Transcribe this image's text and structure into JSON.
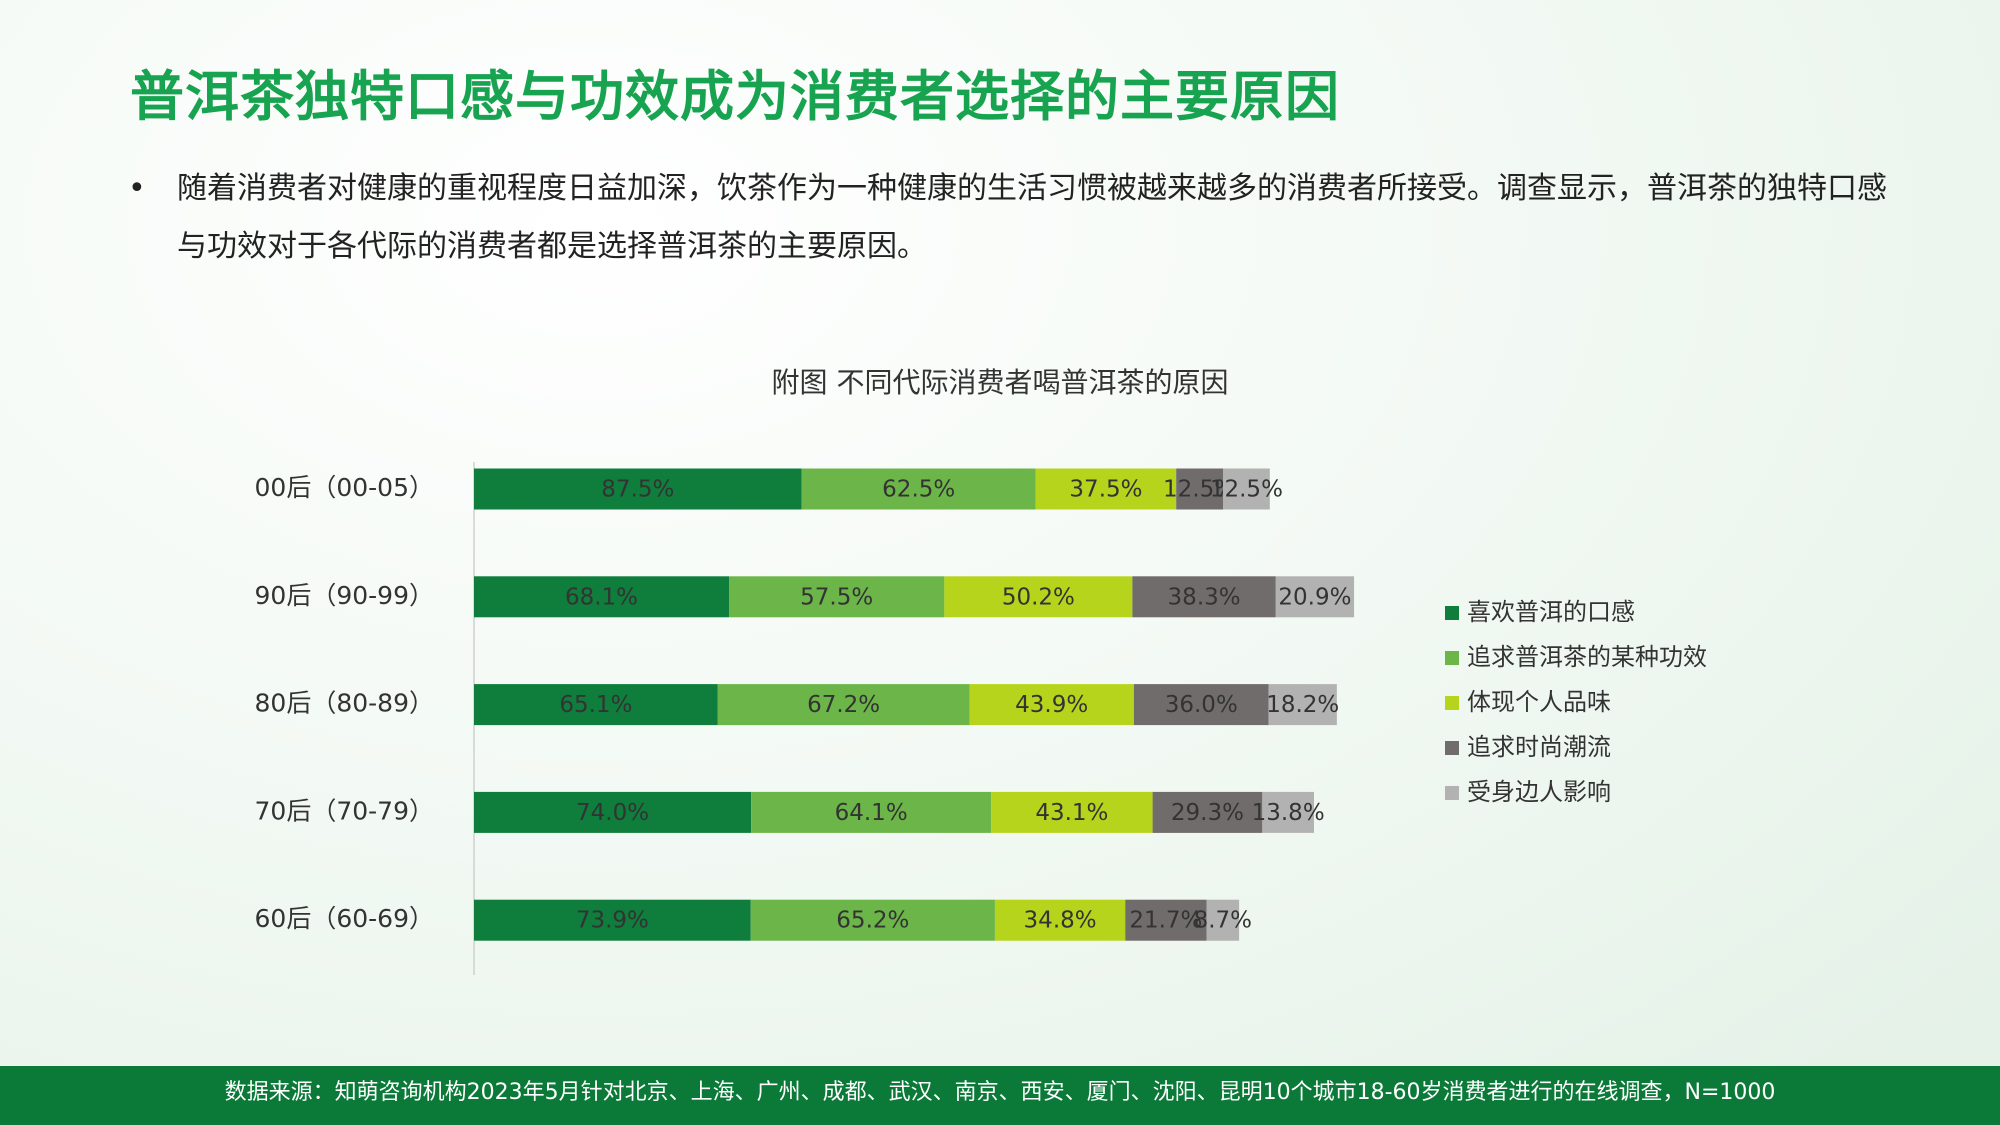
{
  "slide": {
    "title": "普洱茶独特口感与功效成为消费者选择的主要原因",
    "bullet": "随着消费者对健康的重视程度日益加深，饮茶作为一种健康的生活习惯被越来越多的消费者所接受。调查显示，普洱茶的独特口感与功效对于各代际的消费者都是选择普洱茶的主要原因。",
    "source": "数据来源：知萌咨询机构2023年5月针对北京、上海、广州、成都、武汉、南京、西安、厦门、沈阳、昆明10个城市18-60岁消费者进行的在线调查，N=1000"
  },
  "chart_data": {
    "type": "stacked-horizontal-bar",
    "title": "附图 不同代际消费者喝普洱茶的原因",
    "categories": [
      "00后（00-05）",
      "90后（90-99）",
      "80后（80-89）",
      "70后（70-79）",
      "60后（60-69）"
    ],
    "series": [
      {
        "name": "喜欢普洱的口感",
        "color": "#0f7d3c",
        "values": [
          87.5,
          68.1,
          65.1,
          74.0,
          73.9
        ],
        "value_labels": [
          "87.5%",
          "68.1%",
          "65.1%",
          "74.0%",
          "73.9%"
        ]
      },
      {
        "name": "追求普洱茶的某种功效",
        "color": "#6cb548",
        "values": [
          62.5,
          57.5,
          67.2,
          64.1,
          65.2
        ],
        "value_labels": [
          "62.5%",
          "57.5%",
          "67.2%",
          "64.1%",
          "65.2%"
        ]
      },
      {
        "name": "体现个人品味",
        "color": "#b6d41c",
        "values": [
          37.5,
          50.2,
          43.9,
          43.1,
          34.8
        ],
        "value_labels": [
          "37.5%",
          "50.2%",
          "43.9%",
          "43.1%",
          "34.8%"
        ]
      },
      {
        "name": "追求时尚潮流",
        "color": "#706c6c",
        "values": [
          12.5,
          38.3,
          36.0,
          29.3,
          21.7
        ],
        "value_labels": [
          "12.5%",
          "38.3%",
          "36.0%",
          "29.3%",
          "21.7%"
        ]
      },
      {
        "name": "受身边人影响",
        "color": "#b3b2b2",
        "values": [
          12.5,
          20.9,
          18.2,
          13.8,
          8.7
        ],
        "value_labels": [
          "12.5%",
          "20.9%",
          "18.2%",
          "13.8%",
          "8.7%"
        ]
      }
    ],
    "legend": "right"
  }
}
